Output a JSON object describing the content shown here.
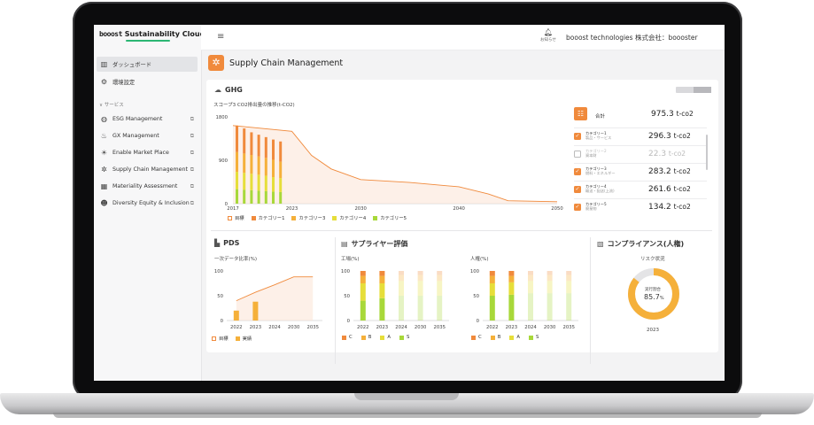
{
  "app": {
    "brand_logo": "booost",
    "brand_name": "Sustainability Cloud",
    "company": "booost technologies 株式会社：boooster",
    "notifications_label": "お知らせ",
    "page_title": "Supply Chain  Management"
  },
  "sidebar": {
    "items": [
      {
        "label": "ダッシュボード",
        "icon": "chart-icon"
      },
      {
        "label": "環境設定",
        "icon": "gear-icon"
      }
    ],
    "section_label": "サービス",
    "services": [
      {
        "label": "ESG Management",
        "icon": "globe-icon"
      },
      {
        "label": "GX Management",
        "icon": "factory-icon"
      },
      {
        "label": "Enable Market Place",
        "icon": "sun-icon"
      },
      {
        "label": "Supply Chain Management",
        "icon": "network-icon"
      },
      {
        "label": "Materiality Assessment",
        "icon": "grid-icon"
      },
      {
        "label": "Diversity Equity & Inclusion",
        "icon": "people-icon"
      }
    ]
  },
  "ghg": {
    "title": "GHG",
    "subtitle": "スコープ3 CO2排出量の推移(t-CO2)",
    "total_label": "合計",
    "total_value": "975.3",
    "unit": "t-co2",
    "categories": [
      {
        "name": "カテゴリー1",
        "sub": "製品・サービス",
        "value": "296.3",
        "checked": true
      },
      {
        "name": "カテゴリー2",
        "sub": "資本財",
        "value": "22.3",
        "checked": false
      },
      {
        "name": "カテゴリー3",
        "sub": "燃料・エネルギー",
        "value": "283.2",
        "checked": true
      },
      {
        "name": "カテゴリー4",
        "sub": "輸送・配送(上流)",
        "value": "261.6",
        "checked": true
      },
      {
        "name": "カテゴリー5",
        "sub": "廃棄物",
        "value": "134.2",
        "checked": true
      }
    ],
    "legend": [
      "目標",
      "カテゴリー1",
      "カテゴリー3",
      "カテゴリー4",
      "カテゴリー5"
    ]
  },
  "pds": {
    "title": "PDS",
    "subtitle": "一次データ比率(%)",
    "legend": [
      "目標",
      "実績"
    ]
  },
  "supplier": {
    "title": "サプライヤー評価",
    "chart1_label": "工場(%)",
    "chart2_label": "人権(%)",
    "legend": [
      "C",
      "B",
      "A",
      "S"
    ]
  },
  "compliance": {
    "title": "コンプライアンス(人権)",
    "subtitle": "リスク状況",
    "center_label": "実行割合",
    "center_value": "85.7",
    "center_unit": "%",
    "year": "2023"
  },
  "colors": {
    "orange": "#f08a3c",
    "light_orange": "#f5b03a",
    "yellow": "#e6de3a",
    "green": "#a8d83a"
  },
  "chart_data": [
    {
      "type": "bar",
      "title": "スコープ3 CO2排出量の推移(t-CO2)",
      "x_ticks": [
        "2017",
        "2023",
        "2030",
        "2040",
        "2050"
      ],
      "y_ticks": [
        "1800",
        "900",
        "0"
      ],
      "ylim": [
        0,
        1800
      ],
      "categories": [
        "2017",
        "2018",
        "2019",
        "2020",
        "2021",
        "2022",
        "2023"
      ],
      "series": [
        {
          "name": "カテゴリー5",
          "values": [
            300,
            290,
            280,
            270,
            260,
            250,
            240
          ]
        },
        {
          "name": "カテゴリー4",
          "values": [
            360,
            350,
            340,
            330,
            320,
            300,
            290
          ]
        },
        {
          "name": "カテゴリー3",
          "values": [
            410,
            400,
            390,
            380,
            370,
            360,
            340
          ]
        },
        {
          "name": "カテゴリー1",
          "values": [
            550,
            520,
            470,
            450,
            430,
            420,
            420
          ]
        }
      ],
      "target_line": {
        "name": "目標",
        "x": [
          2017,
          2023,
          2025,
          2027,
          2030,
          2035,
          2040,
          2043,
          2045,
          2050
        ],
        "y": [
          1620,
          1500,
          1000,
          720,
          500,
          440,
          350,
          200,
          60,
          40
        ]
      }
    },
    {
      "type": "bar",
      "title": "一次データ比率(%)",
      "x_ticks": [
        "2022",
        "2023",
        "2024",
        "2030",
        "2035"
      ],
      "y_ticks": [
        "100",
        "50",
        "0"
      ],
      "ylim": [
        0,
        100
      ],
      "categories": [
        "2022",
        "2023",
        "2024",
        "2030",
        "2035"
      ],
      "series": [
        {
          "name": "実績",
          "values": [
            20,
            38,
            0,
            0,
            0
          ]
        }
      ],
      "target_line": {
        "name": "目標",
        "values": [
          40,
          57,
          72,
          88,
          88
        ]
      }
    },
    {
      "type": "bar",
      "title": "工場(%)",
      "categories": [
        "2022",
        "2023",
        "2024",
        "2030",
        "2035"
      ],
      "y_ticks": [
        "100",
        "50",
        "0"
      ],
      "ylim": [
        0,
        100
      ],
      "series": [
        {
          "name": "S",
          "values": [
            40,
            45,
            50,
            50,
            50
          ]
        },
        {
          "name": "A",
          "values": [
            35,
            30,
            30,
            30,
            30
          ]
        },
        {
          "name": "B",
          "values": [
            15,
            15,
            12,
            12,
            12
          ]
        },
        {
          "name": "C",
          "values": [
            10,
            10,
            8,
            8,
            8
          ]
        }
      ]
    },
    {
      "type": "bar",
      "title": "人権(%)",
      "categories": [
        "2022",
        "2023",
        "2024",
        "2030",
        "2035"
      ],
      "y_ticks": [
        "100",
        "50",
        "0"
      ],
      "ylim": [
        0,
        100
      ],
      "series": [
        {
          "name": "S",
          "values": [
            50,
            52,
            55,
            55,
            55
          ]
        },
        {
          "name": "A",
          "values": [
            25,
            25,
            25,
            25,
            25
          ]
        },
        {
          "name": "B",
          "values": [
            15,
            13,
            12,
            12,
            12
          ]
        },
        {
          "name": "C",
          "values": [
            10,
            10,
            8,
            8,
            8
          ]
        }
      ]
    },
    {
      "type": "pie",
      "title": "リスク状況",
      "values": [
        85.7,
        14.3
      ]
    }
  ]
}
